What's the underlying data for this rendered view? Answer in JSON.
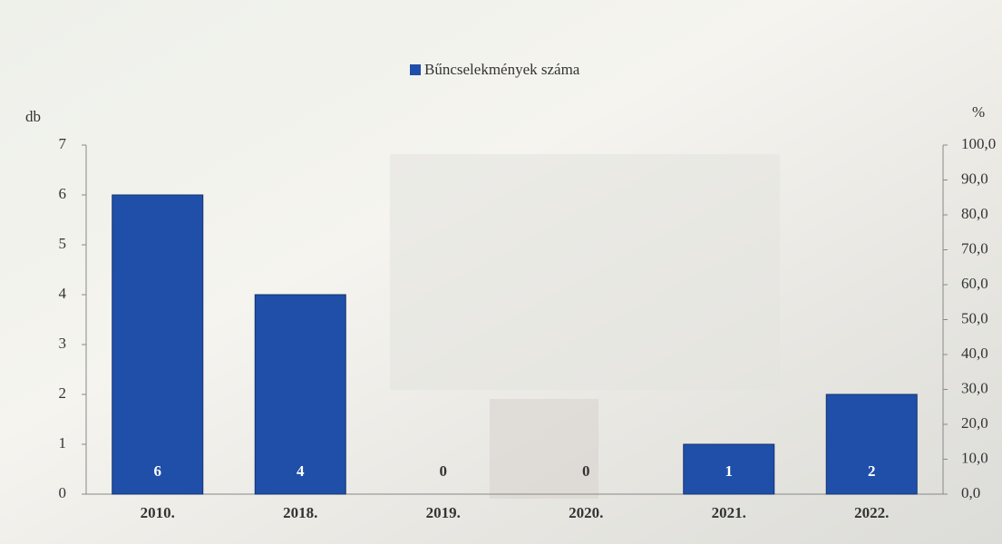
{
  "chart_data": {
    "type": "bar",
    "categories": [
      "2010.",
      "2018.",
      "2019.",
      "2020.",
      "2021.",
      "2022."
    ],
    "series": [
      {
        "name": "Bűncselekmények száma",
        "color": "#1f4fa8",
        "values": [
          6,
          4,
          0,
          0,
          1,
          2
        ]
      }
    ],
    "y_label": "db",
    "y2_label": "%",
    "ylim": [
      0,
      7
    ],
    "yticks": [
      0,
      1,
      2,
      3,
      4,
      5,
      6,
      7
    ],
    "y2lim": [
      0,
      100
    ],
    "y2ticks": [
      {
        "value": 0,
        "label": "0,0"
      },
      {
        "value": 10,
        "label": "10,0"
      },
      {
        "value": 20,
        "label": "20,0"
      },
      {
        "value": 30,
        "label": "30,0"
      },
      {
        "value": 40,
        "label": "40,0"
      },
      {
        "value": 50,
        "label": "50,0"
      },
      {
        "value": 60,
        "label": "60,0"
      },
      {
        "value": 70,
        "label": "70,0"
      },
      {
        "value": 80,
        "label": "80,0"
      },
      {
        "value": 90,
        "label": "90,0"
      },
      {
        "value": 100,
        "label": "100,0"
      }
    ]
  }
}
